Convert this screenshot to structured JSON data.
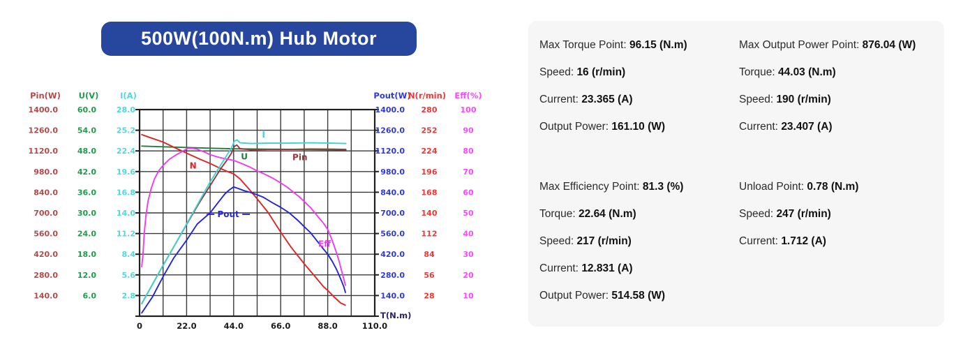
{
  "title": "500W(100N.m) Hub Motor",
  "colors": {
    "banner_bg": "#27479e",
    "banner_text": "#ffffff",
    "panel_bg": "#f6f6f7",
    "grid": "#3a3a3a",
    "grid_border": "#1f1f1f",
    "x_tick_text": "#1c1c1c",
    "t_axis_label": "#232366"
  },
  "chart_data": {
    "type": "line",
    "xlabel": "T(N.m)",
    "xlim": [
      0,
      110
    ],
    "x_ticks": [
      "0",
      "22.0",
      "44.0",
      "66.0",
      "88.0",
      "110.0"
    ],
    "grid": true,
    "axes_left": [
      {
        "name": "Pin(W)",
        "color": "#b14a4a",
        "max": 1400,
        "ticks": [
          "1400.0",
          "1260.0",
          "1120.0",
          "980.0",
          "840.0",
          "700.0",
          "560.0",
          "420.0",
          "280.0",
          "140.0"
        ]
      },
      {
        "name": "U(V)",
        "color": "#1f9e4a",
        "max": 60,
        "ticks": [
          "60.0",
          "54.0",
          "48.0",
          "42.0",
          "36.0",
          "30.0",
          "24.0",
          "18.0",
          "12.0",
          "6.0"
        ]
      },
      {
        "name": "I(A)",
        "color": "#52d8d8",
        "max": 28,
        "ticks": [
          "28.0",
          "25.2",
          "22.4",
          "19.6",
          "16.8",
          "14.0",
          "11.2",
          "8.4",
          "5.6",
          "2.8"
        ]
      }
    ],
    "axes_right": [
      {
        "name": "Pout(W)",
        "color": "#3038e0",
        "max": 1400,
        "ticks": [
          "1400.0",
          "1260.0",
          "1120.0",
          "980.0",
          "840.0",
          "700.0",
          "560.0",
          "420.0",
          "280.0",
          "140.0"
        ]
      },
      {
        "name": "N(r/min)",
        "color": "#f23535",
        "max": 280,
        "ticks": [
          "280",
          "252",
          "224",
          "196",
          "168",
          "140",
          "112",
          "84",
          "56",
          "28"
        ]
      },
      {
        "name": "Eff(%)",
        "color": "#ff45ff",
        "max": 100,
        "ticks": [
          "100",
          "90",
          "80",
          "70",
          "60",
          "50",
          "40",
          "30",
          "20",
          "10"
        ]
      }
    ],
    "series": [
      {
        "name": "U",
        "color": "#1e7e3e",
        "axis_max": 60,
        "label_at": [
          49,
          46.3
        ],
        "points": [
          [
            1,
            49.4
          ],
          [
            11,
            49.2
          ],
          [
            22,
            49.0
          ],
          [
            33,
            48.8
          ],
          [
            44,
            48.6
          ],
          [
            60,
            48.5
          ],
          [
            80,
            48.4
          ],
          [
            96.5,
            48.3
          ]
        ]
      },
      {
        "name": "Pin",
        "color": "#943a3c",
        "axis_max": 1400,
        "label_at": [
          75,
          1075
        ],
        "points": [
          [
            1,
            85
          ],
          [
            6,
            215
          ],
          [
            11,
            345
          ],
          [
            16,
            470
          ],
          [
            22,
            622
          ],
          [
            28,
            770
          ],
          [
            33,
            885
          ],
          [
            38,
            1000
          ],
          [
            41,
            1060
          ],
          [
            43,
            1105
          ],
          [
            44.3,
            1150
          ],
          [
            45.5,
            1160
          ],
          [
            47,
            1135
          ],
          [
            52,
            1128
          ],
          [
            60,
            1130
          ],
          [
            70,
            1130
          ],
          [
            80,
            1133
          ],
          [
            90,
            1132
          ],
          [
            96.5,
            1130
          ]
        ]
      },
      {
        "name": "N",
        "color": "#e02424",
        "axis_max": 280,
        "label_at": [
          25,
          204
        ],
        "points": [
          [
            1,
            246
          ],
          [
            5,
            242
          ],
          [
            11,
            236
          ],
          [
            16,
            229
          ],
          [
            22,
            221
          ],
          [
            28,
            213
          ],
          [
            33,
            207
          ],
          [
            38,
            200
          ],
          [
            42,
            195
          ],
          [
            44,
            193
          ],
          [
            47,
            186
          ],
          [
            51,
            173
          ],
          [
            55,
            159
          ],
          [
            60,
            141
          ],
          [
            66,
            114
          ],
          [
            71,
            93
          ],
          [
            77,
            71
          ],
          [
            82,
            54
          ],
          [
            86,
            40
          ],
          [
            88,
            35
          ],
          [
            91,
            26
          ],
          [
            94,
            18
          ],
          [
            96.2,
            15
          ]
        ]
      },
      {
        "name": "Pout",
        "color": "#2326d6",
        "axis_max": 1400,
        "label_at": [
          41.5,
          690
        ],
        "leader_dashes": true,
        "points": [
          [
            1,
            22
          ],
          [
            6,
            130
          ],
          [
            11,
            268
          ],
          [
            16,
            395
          ],
          [
            22,
            515
          ],
          [
            27,
            625
          ],
          [
            33,
            700
          ],
          [
            37,
            775
          ],
          [
            40,
            830
          ],
          [
            42,
            856
          ],
          [
            44,
            876
          ],
          [
            46,
            866
          ],
          [
            49,
            850
          ],
          [
            52,
            838
          ],
          [
            55,
            823
          ],
          [
            58,
            805
          ],
          [
            62,
            770
          ],
          [
            66,
            738
          ],
          [
            70,
            700
          ],
          [
            74,
            650
          ],
          [
            77,
            607
          ],
          [
            80,
            565
          ],
          [
            83,
            510
          ],
          [
            86,
            455
          ],
          [
            88,
            420
          ],
          [
            90,
            375
          ],
          [
            92,
            320
          ],
          [
            94,
            255
          ],
          [
            95.5,
            200
          ],
          [
            96.3,
            161
          ]
        ]
      },
      {
        "name": "Eff",
        "color": "#f23af2",
        "axis_max": 100,
        "label_at": [
          86.5,
          35
        ],
        "points": [
          [
            1,
            24
          ],
          [
            1.6,
            30
          ],
          [
            2.2,
            40
          ],
          [
            3,
            49
          ],
          [
            4,
            56
          ],
          [
            5.5,
            62
          ],
          [
            7,
            66.5
          ],
          [
            9,
            70.5
          ],
          [
            11,
            73
          ],
          [
            14,
            76
          ],
          [
            17,
            78
          ],
          [
            20,
            79.8
          ],
          [
            22.6,
            81.3
          ],
          [
            25,
            81.2
          ],
          [
            27,
            80.8
          ],
          [
            30,
            79.6
          ],
          [
            33,
            78.2
          ],
          [
            36,
            77.2
          ],
          [
            40,
            76.2
          ],
          [
            44,
            75.4
          ],
          [
            48,
            73.8
          ],
          [
            52,
            72
          ],
          [
            55,
            70.3
          ],
          [
            58,
            69
          ],
          [
            62,
            67
          ],
          [
            66,
            64.5
          ],
          [
            69,
            62.5
          ],
          [
            72,
            60
          ],
          [
            75,
            57.5
          ],
          [
            77,
            55.5
          ],
          [
            80,
            52.5
          ],
          [
            82,
            50
          ],
          [
            84,
            47.5
          ],
          [
            86,
            45
          ],
          [
            88,
            42
          ],
          [
            90,
            37
          ],
          [
            92,
            31
          ],
          [
            93.5,
            26
          ],
          [
            95,
            20
          ],
          [
            96.3,
            15
          ]
        ]
      },
      {
        "name": "I",
        "color": "#3fd2d2",
        "axis_max": 28,
        "label_at": [
          58,
          24.6
        ],
        "points": [
          [
            1,
            1.7
          ],
          [
            6,
            4.3
          ],
          [
            11,
            6.9
          ],
          [
            16,
            9.4
          ],
          [
            22,
            12.5
          ],
          [
            28,
            15.6
          ],
          [
            33,
            18.2
          ],
          [
            38,
            20.5
          ],
          [
            41,
            21.9
          ],
          [
            43,
            22.8
          ],
          [
            44.3,
            23.7
          ],
          [
            45.5,
            23.9
          ],
          [
            47,
            23.5
          ],
          [
            52,
            23.4
          ],
          [
            60,
            23.45
          ],
          [
            70,
            23.45
          ],
          [
            80,
            23.5
          ],
          [
            90,
            23.45
          ],
          [
            96.5,
            23.4
          ]
        ]
      }
    ]
  },
  "panel": {
    "blocks": [
      {
        "columns": [
          {
            "rows": [
              {
                "label": "Max Torque Point",
                "value": "96.15",
                "unit": "(N.m)"
              },
              {
                "label": "Speed",
                "value": "16",
                "unit": "(r/min)"
              },
              {
                "label": "Current",
                "value": "23.365",
                "unit": "(A)"
              },
              {
                "label": "Output Power",
                "value": "161.10",
                "unit": "(W)"
              }
            ]
          },
          {
            "rows": [
              {
                "label": "Max Output Power Point",
                "value": "876.04",
                "unit": "(W)"
              },
              {
                "label": "Torque",
                "value": "44.03",
                "unit": "(N.m)"
              },
              {
                "label": "Speed",
                "value": "190",
                "unit": "(r/min)"
              },
              {
                "label": "Current",
                "value": "23.407",
                "unit": "(A)"
              }
            ]
          }
        ]
      },
      {
        "columns": [
          {
            "rows": [
              {
                "label": "Max Efficiency Point",
                "value": "81.3",
                "unit": "(%)"
              },
              {
                "label": "Torque",
                "value": "22.64",
                "unit": "(N.m)"
              },
              {
                "label": "Speed",
                "value": "217",
                "unit": "(r/min)"
              },
              {
                "label": "Current",
                "value": "12.831",
                "unit": "(A)"
              },
              {
                "label": "Output Power",
                "value": "514.58",
                "unit": "(W)"
              }
            ]
          },
          {
            "rows": [
              {
                "label": "Unload Point",
                "value": "0.78",
                "unit": "(N.m)"
              },
              {
                "label": "Speed",
                "value": "247",
                "unit": "(r/min)"
              },
              {
                "label": "Current",
                "value": "1.712",
                "unit": "(A)"
              }
            ]
          }
        ]
      }
    ]
  }
}
